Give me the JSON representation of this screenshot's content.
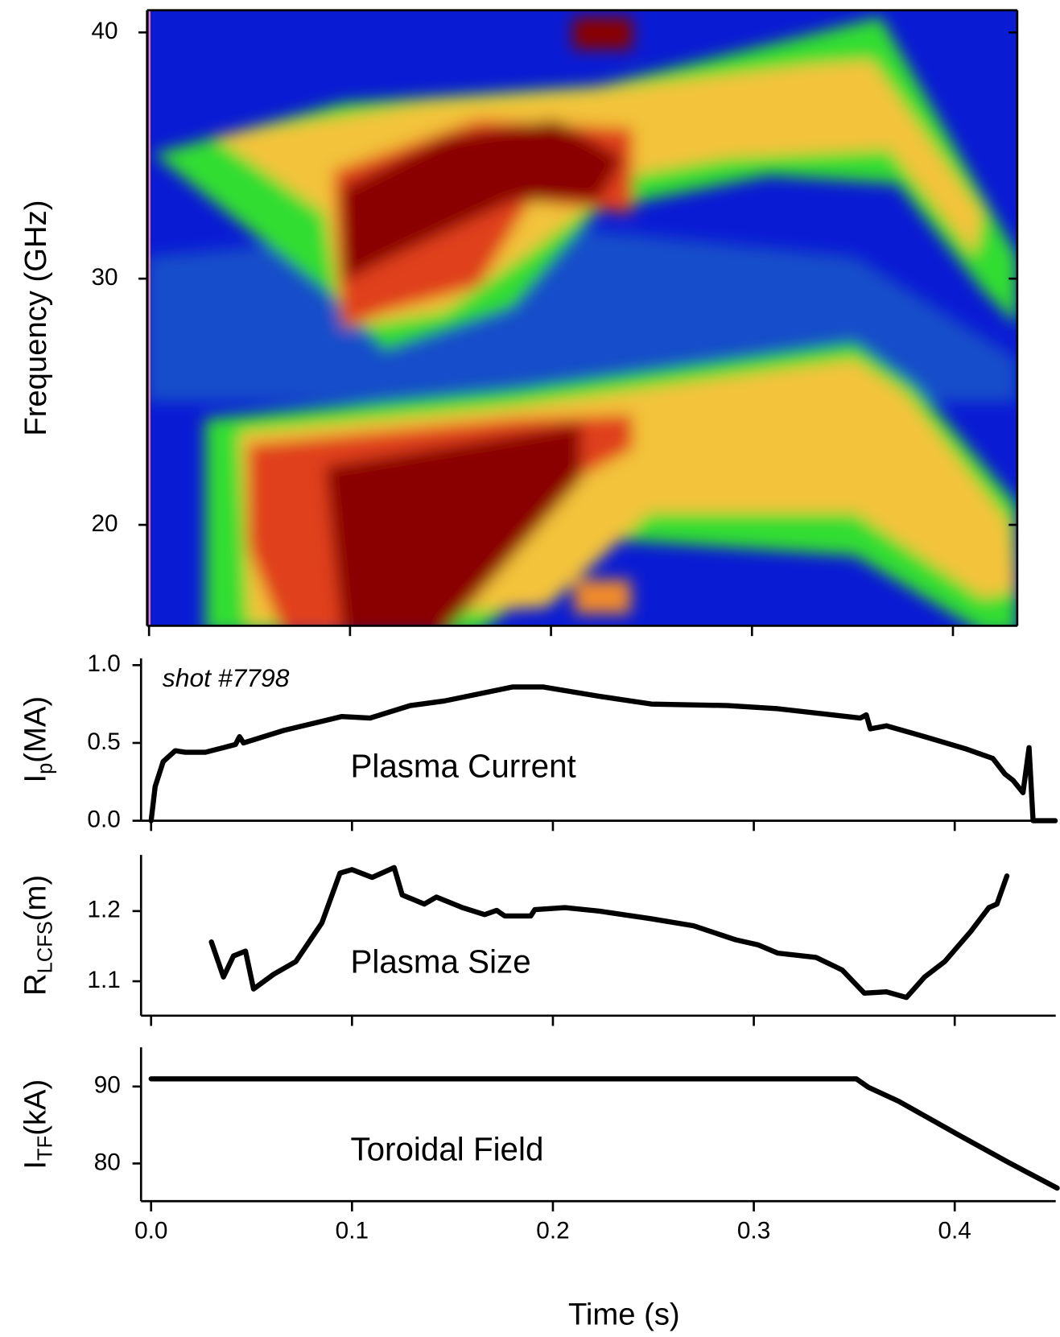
{
  "chart_data": [
    {
      "type": "spectrogram",
      "y_label": "Frequency (GHz)",
      "xlim": [
        -0.001,
        0.432
      ],
      "ylim": [
        15.9,
        40.9
      ],
      "yticks": [
        20,
        30,
        40
      ]
    },
    {
      "type": "line",
      "y_label": {
        "text": "I",
        "sub": "p",
        "unit": "(MA)"
      },
      "annotation": "shot #7798",
      "label": "Plasma Current",
      "xlim": [
        -0.005,
        0.449
      ],
      "ylim": [
        0,
        1.044
      ],
      "yticks": [
        {
          "value": 0,
          "label": "0.0"
        },
        0.5,
        {
          "value": 1,
          "label": "1.0"
        }
      ],
      "color": "#000000",
      "x": [
        0.0,
        0.002,
        0.006,
        0.012,
        0.017,
        0.027,
        0.036,
        0.042,
        0.044,
        0.046,
        0.066,
        0.095,
        0.109,
        0.129,
        0.146,
        0.18,
        0.195,
        0.223,
        0.249,
        0.287,
        0.312,
        0.353,
        0.356,
        0.358,
        0.366,
        0.385,
        0.406,
        0.419,
        0.425,
        0.429,
        0.434,
        0.437,
        0.439,
        0.45
      ],
      "values": [
        0.0,
        0.22,
        0.38,
        0.45,
        0.44,
        0.44,
        0.47,
        0.49,
        0.54,
        0.5,
        0.58,
        0.67,
        0.66,
        0.74,
        0.77,
        0.86,
        0.86,
        0.8,
        0.75,
        0.74,
        0.72,
        0.66,
        0.68,
        0.59,
        0.61,
        0.54,
        0.46,
        0.4,
        0.3,
        0.26,
        0.18,
        0.47,
        0.0,
        0.0
      ]
    },
    {
      "type": "line",
      "y_label": {
        "text": "R",
        "sub": "LCFS",
        "unit": "(m)"
      },
      "label": "Plasma Size",
      "xlim": [
        -0.005,
        0.449
      ],
      "ylim": [
        1.051,
        1.28
      ],
      "yticks": [
        1.1,
        1.2
      ],
      "color": "#000000",
      "x": [
        0.03,
        0.036,
        0.041,
        0.047,
        0.051,
        0.061,
        0.072,
        0.085,
        0.094,
        0.1,
        0.11,
        0.121,
        0.125,
        0.136,
        0.142,
        0.155,
        0.166,
        0.172,
        0.176,
        0.189,
        0.191,
        0.206,
        0.223,
        0.249,
        0.27,
        0.291,
        0.302,
        0.312,
        0.331,
        0.344,
        0.355,
        0.366,
        0.376,
        0.385,
        0.395,
        0.408,
        0.417,
        0.421,
        0.426
      ],
      "values": [
        1.156,
        1.106,
        1.136,
        1.143,
        1.089,
        1.11,
        1.128,
        1.183,
        1.254,
        1.259,
        1.248,
        1.262,
        1.223,
        1.21,
        1.22,
        1.205,
        1.195,
        1.201,
        1.193,
        1.193,
        1.202,
        1.205,
        1.2,
        1.189,
        1.179,
        1.159,
        1.152,
        1.14,
        1.134,
        1.116,
        1.083,
        1.085,
        1.077,
        1.106,
        1.128,
        1.171,
        1.205,
        1.21,
        1.25
      ]
    },
    {
      "type": "line",
      "y_label": {
        "text": "I",
        "sub": "TF",
        "unit": "(kA)"
      },
      "label": "Toroidal Field",
      "x_label": "Time (s)",
      "xlim": [
        -0.005,
        0.449
      ],
      "ylim": [
        75.1,
        95.1
      ],
      "yticks": [
        80,
        90
      ],
      "color": "#000000",
      "xticks": [
        {
          "value": 0,
          "label": "0.0"
        },
        0.1,
        0.2,
        0.3,
        0.4
      ],
      "x": [
        0.0,
        0.18,
        0.351,
        0.357,
        0.372,
        0.402,
        0.427,
        0.451
      ],
      "values": [
        91.0,
        91.0,
        91.0,
        89.9,
        88.1,
        83.7,
        80.1,
        76.8
      ]
    }
  ]
}
